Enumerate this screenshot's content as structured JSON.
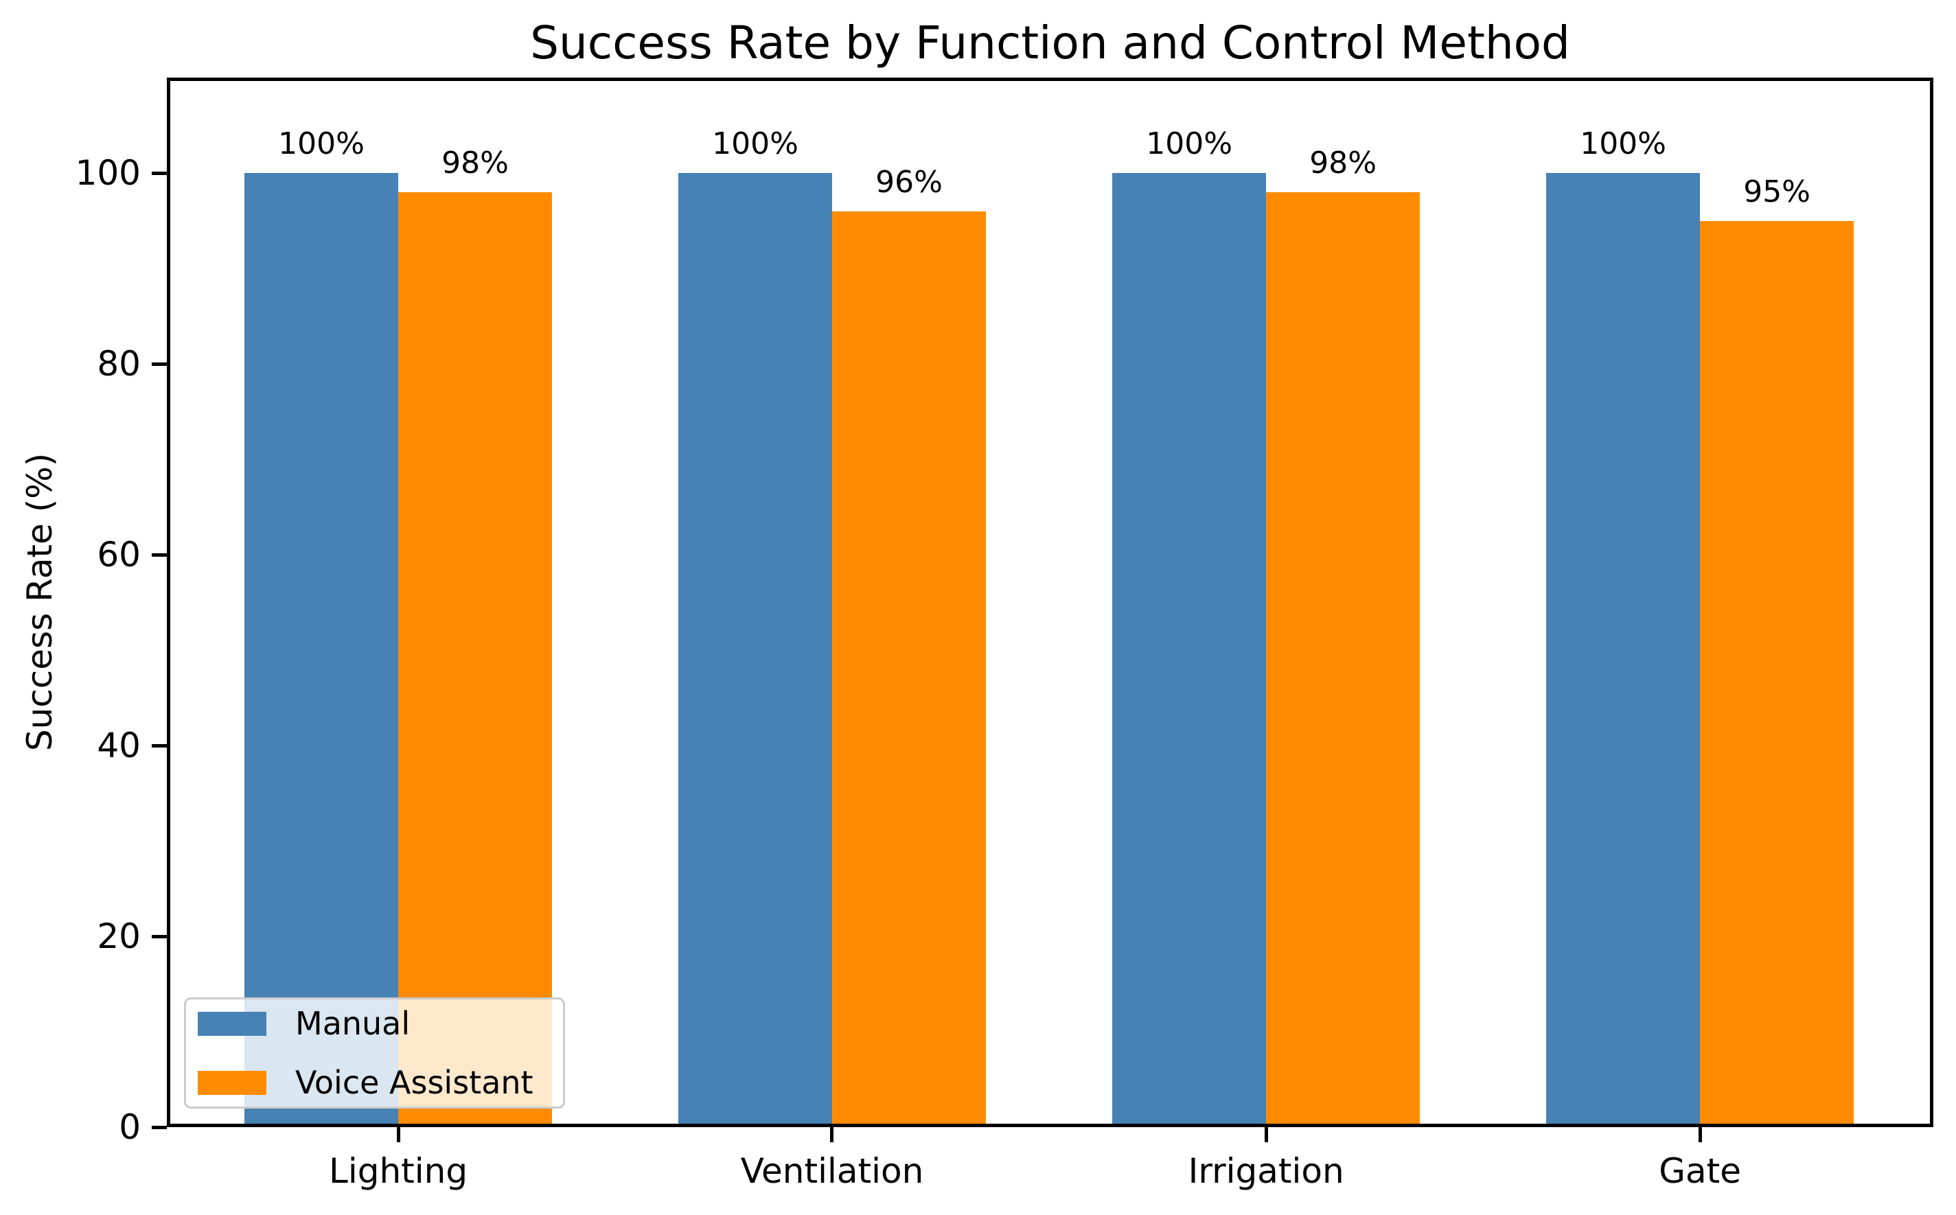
{
  "chart_data": {
    "type": "bar",
    "title": "Success Rate by Function and Control Method",
    "xlabel": "",
    "ylabel": "Success Rate (%)",
    "categories": [
      "Lighting",
      "Ventilation",
      "Irrigation",
      "Gate"
    ],
    "series": [
      {
        "name": "Manual",
        "color": "#4682B4",
        "values": [
          100,
          100,
          100,
          100
        ],
        "bar_labels": [
          "100%",
          "100%",
          "100%",
          "100%"
        ]
      },
      {
        "name": "Voice Assistant",
        "color": "#FF8C00",
        "values": [
          98,
          96,
          98,
          95
        ],
        "bar_labels": [
          "98%",
          "96%",
          "98%",
          "95%"
        ]
      }
    ],
    "ylim": [
      0,
      110
    ],
    "ytick_labels": [
      "0",
      "20",
      "40",
      "60",
      "80",
      "100"
    ],
    "ytick_values": [
      0,
      20,
      40,
      60,
      80,
      100
    ],
    "grid": false,
    "legend": {
      "position": "lower left",
      "entries": [
        "Manual",
        "Voice Assistant"
      ]
    },
    "background_color": "#ffffff",
    "text_color": "#000000"
  }
}
